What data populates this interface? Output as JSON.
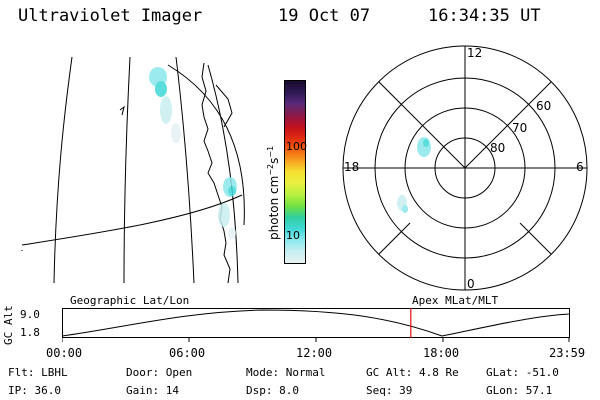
{
  "header": {
    "instrument": "Ultraviolet Imager",
    "date": "19 Oct 07",
    "time": "16:34:35 UT"
  },
  "colorbar": {
    "unit_label": "photon cm-2s-1",
    "ticks": [
      "100",
      "10"
    ],
    "colors": [
      "#1a0b2e",
      "#2d1a55",
      "#5a2a7a",
      "#8a1a4a",
      "#c01020",
      "#e02a10",
      "#f06010",
      "#f7a020",
      "#f6e030",
      "#e8f040",
      "#b8f040",
      "#70e040",
      "#30d0a0",
      "#40d8d8",
      "#8ae8ec",
      "#c8eef0",
      "#e6f2f4"
    ]
  },
  "polar": {
    "clock_labels": [
      "12",
      "18",
      "6",
      "0"
    ],
    "lat_labels": [
      "60",
      "70",
      "80"
    ]
  },
  "timeline": {
    "left_label": "Geographic Lat/Lon",
    "right_label": "Apex MLat/MLT",
    "axis_title": "GC Alt",
    "y_ticks": [
      "9.0",
      "1.8"
    ],
    "x_ticks": [
      "00:00",
      "06:00",
      "12:00",
      "18:00",
      "23:59"
    ],
    "current_time_fraction": 0.688,
    "marker_color": "#e01010"
  },
  "status": {
    "filter": "Flt: LBHL",
    "ip": "IP: 36.0",
    "door": "Door: Open",
    "gain": "Gain: 14",
    "mode": "Mode: Normal",
    "dsp": "Dsp:    8.0",
    "gc_alt": "GC Alt: 4.8 Re",
    "seq": "Seq: 39",
    "glat": "GLat: -51.0",
    "glon": "GLon:  57.1"
  }
}
